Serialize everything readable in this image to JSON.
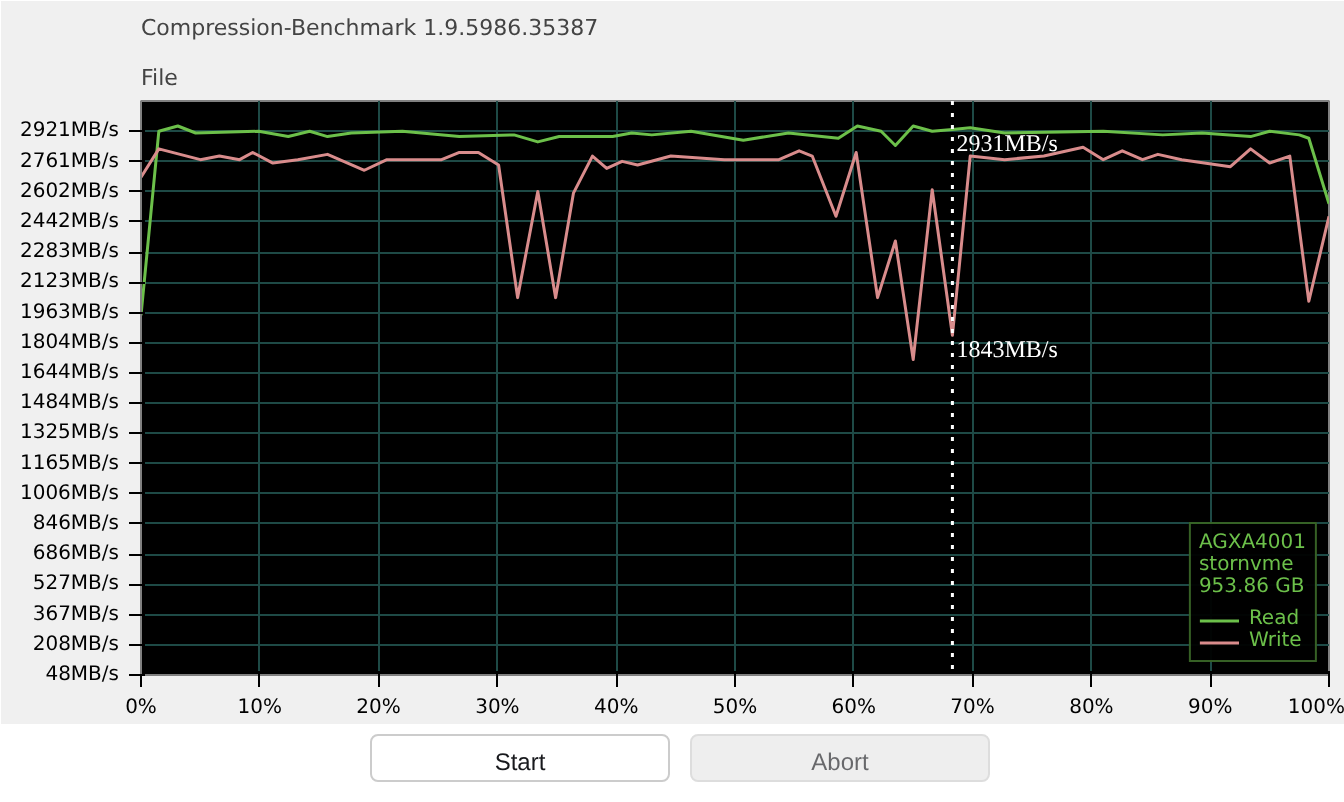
{
  "chart_data": {
    "type": "line",
    "title": "Compression-Benchmark 1.9.5986.35387",
    "xlim": [
      0,
      100
    ],
    "xticks": [
      {
        "value": 0,
        "label": "0%"
      },
      {
        "value": 10,
        "label": "10%"
      },
      {
        "value": 20,
        "label": "20%"
      },
      {
        "value": 30,
        "label": "30%"
      },
      {
        "value": 40,
        "label": "40%"
      },
      {
        "value": 50,
        "label": "50%"
      },
      {
        "value": 60,
        "label": "60%"
      },
      {
        "value": 70,
        "label": "70%"
      },
      {
        "value": 80,
        "label": "80%"
      },
      {
        "value": 90,
        "label": "90%"
      },
      {
        "value": 100,
        "label": "100%"
      }
    ],
    "ylim": [
      48,
      3081
    ],
    "yticks": [
      {
        "value": 48,
        "label": "48MB/s"
      },
      {
        "value": 208,
        "label": "208MB/s"
      },
      {
        "value": 367,
        "label": "367MB/s"
      },
      {
        "value": 527,
        "label": "527MB/s"
      },
      {
        "value": 686,
        "label": "686MB/s"
      },
      {
        "value": 846,
        "label": "846MB/s"
      },
      {
        "value": 1006,
        "label": "1006MB/s"
      },
      {
        "value": 1165,
        "label": "1165MB/s"
      },
      {
        "value": 1325,
        "label": "1325MB/s"
      },
      {
        "value": 1484,
        "label": "1484MB/s"
      },
      {
        "value": 1644,
        "label": "1644MB/s"
      },
      {
        "value": 1804,
        "label": "1804MB/s"
      },
      {
        "value": 1963,
        "label": "1963MB/s"
      },
      {
        "value": 2123,
        "label": "2123MB/s"
      },
      {
        "value": 2283,
        "label": "2283MB/s"
      },
      {
        "value": 2442,
        "label": "2442MB/s"
      },
      {
        "value": 2602,
        "label": "2602MB/s"
      },
      {
        "value": 2761,
        "label": "2761MB/s"
      },
      {
        "value": 2921,
        "label": "2921MB/s"
      }
    ],
    "grid": true,
    "legend": "bottom right",
    "legend_title": "AGXA4001\nstornvme\n953.86 GB",
    "series": [
      {
        "name": "Read",
        "color": "#6cc04a",
        "x": [
          0,
          1.5,
          3.1,
          4.6,
          9.9,
          12.4,
          14.2,
          15.7,
          17.7,
          22.0,
          26.8,
          31.4,
          33.4,
          35.2,
          39.7,
          41.3,
          43.0,
          46.3,
          50.7,
          54.5,
          58.7,
          60.3,
          62.3,
          63.5,
          65.0,
          66.6,
          68.3,
          69.8,
          72.7,
          81.0,
          86.0,
          89.3,
          93.4,
          95.0,
          97.5,
          98.3,
          100
        ],
        "values": [
          1949,
          2921,
          2949,
          2912,
          2921,
          2893,
          2921,
          2893,
          2912,
          2921,
          2893,
          2902,
          2865,
          2893,
          2893,
          2912,
          2902,
          2921,
          2874,
          2912,
          2884,
          2949,
          2921,
          2846,
          2949,
          2921,
          2931,
          2940,
          2912,
          2921,
          2902,
          2912,
          2893,
          2921,
          2902,
          2884,
          2538
        ]
      },
      {
        "name": "Write",
        "color": "#d98c8c",
        "x": [
          0,
          1.5,
          5.0,
          6.6,
          8.3,
          9.4,
          11.1,
          13.2,
          15.7,
          18.8,
          20.7,
          25.3,
          26.8,
          28.4,
          30.1,
          31.7,
          33.4,
          34.9,
          36.4,
          38.0,
          39.2,
          40.5,
          41.8,
          44.6,
          49.1,
          53.7,
          55.4,
          56.5,
          58.5,
          60.2,
          62.0,
          63.5,
          65.0,
          66.6,
          68.3,
          69.8,
          72.7,
          76.0,
          79.3,
          81.0,
          82.6,
          84.3,
          85.6,
          87.6,
          91.7,
          93.4,
          95.0,
          96.7,
          98.3,
          100
        ],
        "values": [
          2678,
          2828,
          2771,
          2790,
          2771,
          2809,
          2753,
          2771,
          2799,
          2715,
          2771,
          2771,
          2809,
          2809,
          2743,
          2042,
          2603,
          2042,
          2594,
          2790,
          2725,
          2762,
          2743,
          2790,
          2771,
          2771,
          2818,
          2790,
          2472,
          2809,
          2042,
          2341,
          1715,
          2612,
          1843,
          2790,
          2771,
          2790,
          2837,
          2771,
          2818,
          2771,
          2799,
          2771,
          2734,
          2828,
          2753,
          2790,
          2023,
          2472
        ]
      }
    ],
    "ref_lines": [
      {
        "axis": "x",
        "value": 68.3,
        "color": "#ffffff",
        "line_style": "dotted"
      }
    ],
    "annotations": [
      {
        "text": "2931MB/s",
        "x": 68.3,
        "y": 2931
      },
      {
        "text": "1843MB/s",
        "x": 68.3,
        "y": 1843
      },
      "File",
      "Start",
      "Abort"
    ]
  }
}
